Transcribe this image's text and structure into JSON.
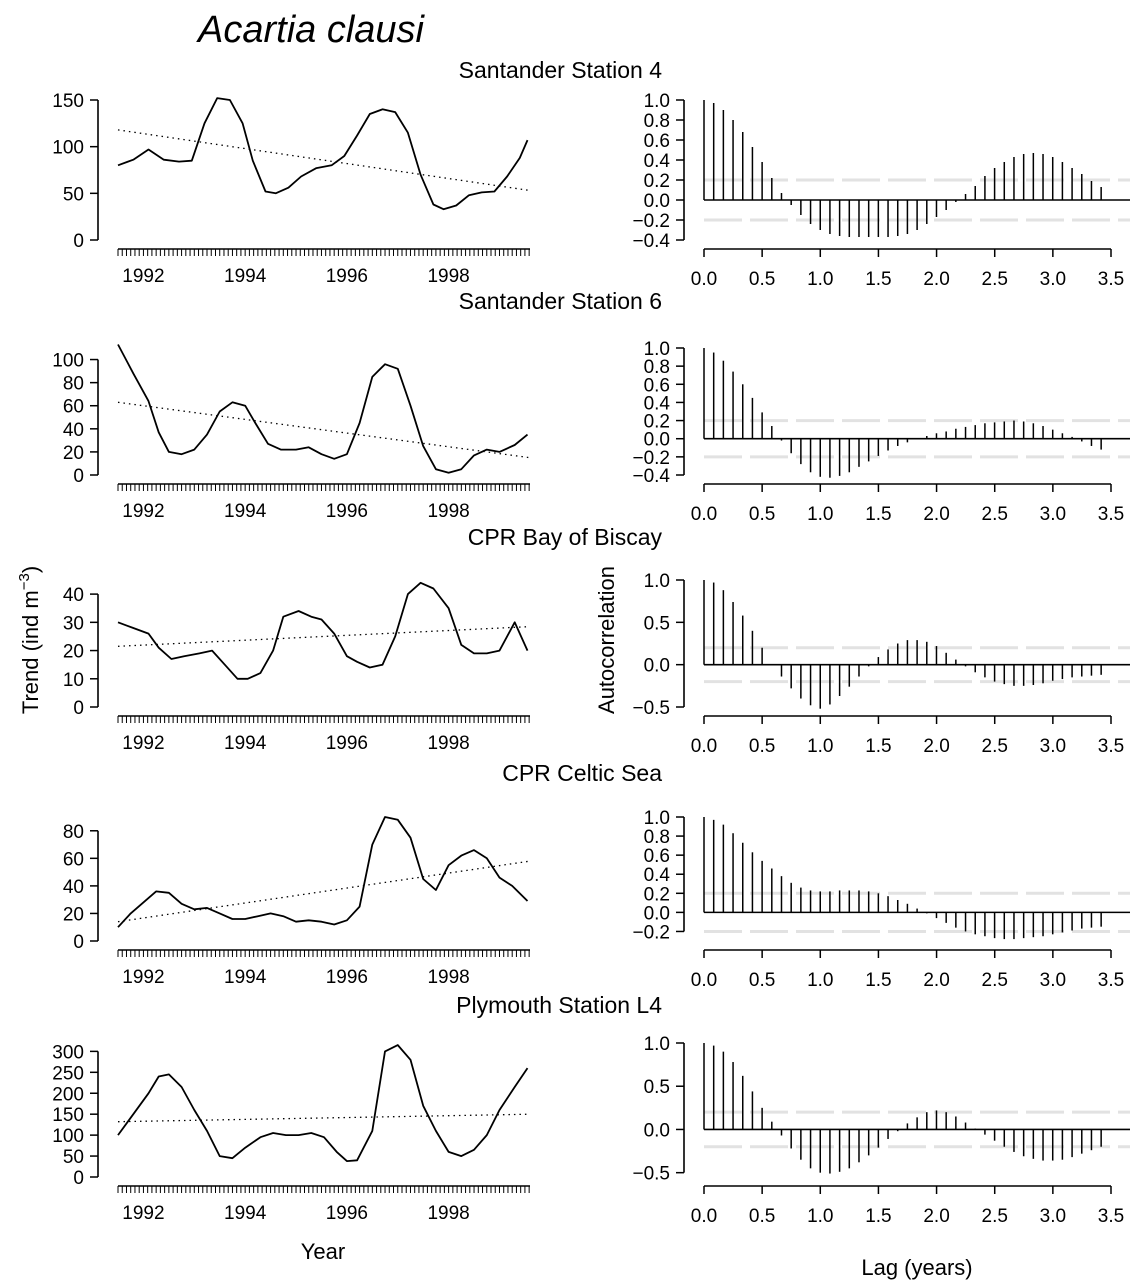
{
  "figure": {
    "title": "Acartia clausi",
    "ylabel_left": "Trend (ind m",
    "ylabel_left_sup": "−3",
    "ylabel_left_close": ")",
    "ylabel_right": "Autocorrelation",
    "xlabel_left": "Year",
    "xlabel_right": "Lag (years)"
  },
  "chart_data": [
    {
      "type": "line",
      "title": "Santander Station 4",
      "xlim": [
        1991.5,
        1999.6
      ],
      "ylim": [
        0,
        150
      ],
      "yticks": [
        0,
        50,
        100,
        150
      ],
      "xticks": [
        1992,
        1994,
        1996,
        1998
      ],
      "series": [
        {
          "style": "solid",
          "x": [
            1991.5,
            1991.8,
            1992.1,
            1992.4,
            1992.7,
            1992.95,
            1993.2,
            1993.45,
            1993.7,
            1993.95,
            1994.15,
            1994.4,
            1994.6,
            1994.85,
            1995.1,
            1995.4,
            1995.7,
            1995.95,
            1996.2,
            1996.45,
            1996.7,
            1996.95,
            1997.2,
            1997.45,
            1997.7,
            1997.9,
            1998.15,
            1998.4,
            1998.65,
            1998.9,
            1999.15,
            1999.4,
            1999.55
          ],
          "y": [
            80,
            86,
            97,
            86,
            84,
            85,
            125,
            152,
            150,
            125,
            85,
            52,
            50,
            56,
            68,
            77,
            80,
            90,
            112,
            135,
            140,
            137,
            115,
            70,
            38,
            33,
            37,
            48,
            51,
            52,
            68,
            88,
            107
          ]
        },
        {
          "style": "dotted",
          "x": [
            1991.5,
            1999.6
          ],
          "y": [
            118,
            53
          ]
        }
      ]
    },
    {
      "type": "line",
      "title": "Santander Station 6",
      "xlim": [
        1991.5,
        1999.6
      ],
      "ylim": [
        0,
        110
      ],
      "yticks": [
        0,
        20,
        40,
        60,
        80,
        100
      ],
      "xticks": [
        1992,
        1994,
        1996,
        1998
      ],
      "series": [
        {
          "style": "solid",
          "x": [
            1991.5,
            1991.8,
            1992.1,
            1992.3,
            1992.5,
            1992.75,
            1993.0,
            1993.25,
            1993.5,
            1993.75,
            1994.0,
            1994.2,
            1994.45,
            1994.7,
            1995.0,
            1995.25,
            1995.5,
            1995.75,
            1996.0,
            1996.25,
            1996.5,
            1996.75,
            1997.0,
            1997.25,
            1997.5,
            1997.75,
            1998.0,
            1998.25,
            1998.5,
            1998.75,
            1999.0,
            1999.3,
            1999.55
          ],
          "y": [
            113,
            88,
            64,
            37,
            20,
            18,
            22,
            35,
            55,
            63,
            60,
            45,
            27,
            22,
            22,
            24,
            18,
            14,
            18,
            45,
            85,
            96,
            92,
            60,
            25,
            5,
            2,
            5,
            17,
            22,
            20,
            26,
            35
          ]
        },
        {
          "style": "dotted",
          "x": [
            1991.5,
            1999.6
          ],
          "y": [
            63,
            15
          ]
        }
      ]
    },
    {
      "type": "line",
      "title": "CPR Bay of Biscay",
      "xlim": [
        1991.5,
        1999.6
      ],
      "ylim": [
        0,
        45
      ],
      "yticks": [
        0,
        10,
        20,
        30,
        40
      ],
      "xticks": [
        1992,
        1994,
        1996,
        1998
      ],
      "series": [
        {
          "style": "solid",
          "x": [
            1991.5,
            1991.8,
            1992.1,
            1992.3,
            1992.55,
            1992.8,
            1993.1,
            1993.35,
            1993.6,
            1993.85,
            1994.05,
            1994.3,
            1994.55,
            1994.75,
            1995.05,
            1995.3,
            1995.5,
            1995.75,
            1996.0,
            1996.2,
            1996.45,
            1996.7,
            1996.95,
            1997.2,
            1997.45,
            1997.7,
            1998.0,
            1998.25,
            1998.5,
            1998.75,
            1999.0,
            1999.3,
            1999.55
          ],
          "y": [
            30,
            28,
            26,
            21,
            17,
            18,
            19,
            20,
            15,
            10,
            10,
            12,
            20,
            32,
            34,
            32,
            31,
            26,
            18,
            16,
            14,
            15,
            25,
            40,
            44,
            42,
            35,
            22,
            19,
            19,
            20,
            30,
            20
          ]
        },
        {
          "style": "dotted",
          "x": [
            1991.5,
            1999.6
          ],
          "y": [
            21.5,
            28.5
          ]
        }
      ]
    },
    {
      "type": "line",
      "title": "CPR Celtic Sea",
      "xlim": [
        1991.5,
        1999.6
      ],
      "ylim": [
        0,
        90
      ],
      "yticks": [
        0,
        20,
        40,
        60,
        80
      ],
      "xticks": [
        1992,
        1994,
        1996,
        1998
      ],
      "series": [
        {
          "style": "solid",
          "x": [
            1991.5,
            1991.75,
            1992.0,
            1992.25,
            1992.5,
            1992.75,
            1993.0,
            1993.25,
            1993.5,
            1993.75,
            1994.0,
            1994.25,
            1994.5,
            1994.75,
            1995.0,
            1995.25,
            1995.5,
            1995.75,
            1996.0,
            1996.25,
            1996.5,
            1996.75,
            1997.0,
            1997.25,
            1997.5,
            1997.75,
            1998.0,
            1998.25,
            1998.5,
            1998.75,
            1999.0,
            1999.25,
            1999.55
          ],
          "y": [
            10,
            20,
            28,
            36,
            35,
            27,
            23,
            24,
            20,
            16,
            16,
            18,
            20,
            18,
            14,
            15,
            14,
            12,
            15,
            25,
            70,
            90,
            88,
            75,
            45,
            37,
            55,
            62,
            66,
            60,
            46,
            40,
            29
          ]
        },
        {
          "style": "dotted",
          "x": [
            1991.5,
            1999.6
          ],
          "y": [
            14,
            58
          ]
        }
      ]
    },
    {
      "type": "line",
      "title": "Plymouth Station L4",
      "xlim": [
        1991.5,
        1999.6
      ],
      "ylim": [
        0,
        320
      ],
      "yticks": [
        0,
        50,
        100,
        150,
        200,
        250,
        300
      ],
      "xticks": [
        1992,
        1994,
        1996,
        1998
      ],
      "series": [
        {
          "style": "solid",
          "x": [
            1991.5,
            1991.8,
            1992.1,
            1992.3,
            1992.5,
            1992.75,
            1993.0,
            1993.25,
            1993.5,
            1993.75,
            1994.0,
            1994.3,
            1994.55,
            1994.8,
            1995.05,
            1995.3,
            1995.55,
            1995.8,
            1996.0,
            1996.2,
            1996.5,
            1996.75,
            1997.0,
            1997.25,
            1997.5,
            1997.75,
            1998.0,
            1998.25,
            1998.5,
            1998.75,
            1999.0,
            1999.3,
            1999.55
          ],
          "y": [
            100,
            150,
            200,
            240,
            245,
            215,
            160,
            110,
            50,
            45,
            70,
            95,
            105,
            100,
            100,
            105,
            95,
            60,
            38,
            40,
            110,
            300,
            315,
            280,
            170,
            110,
            60,
            50,
            65,
            100,
            160,
            215,
            260
          ]
        },
        {
          "style": "dotted",
          "x": [
            1991.5,
            1999.6
          ],
          "y": [
            132,
            150
          ]
        }
      ]
    },
    {
      "type": "bar",
      "title": "",
      "xlim": [
        -0.1,
        3.6
      ],
      "ylim": [
        -0.4,
        1.0
      ],
      "yticks": [
        -0.4,
        -0.2,
        0.0,
        0.2,
        0.4,
        0.6,
        0.8,
        1.0
      ],
      "ytick_labels": [
        "−0.4",
        "−0.2",
        "0.0",
        "0.2",
        "0.4",
        "0.6",
        "0.8",
        "1.0"
      ],
      "xticks": [
        0.0,
        0.5,
        1.0,
        1.5,
        2.0,
        2.5,
        3.0,
        3.5
      ],
      "xtick_labels": [
        "0.0",
        "0.5",
        "1.0",
        "1.5",
        "2.0",
        "2.5",
        "3.0",
        "3.5"
      ],
      "ci": 0.2,
      "lag_step": 0.0833,
      "values": [
        1.0,
        0.97,
        0.9,
        0.8,
        0.68,
        0.53,
        0.38,
        0.22,
        0.07,
        -0.05,
        -0.15,
        -0.24,
        -0.3,
        -0.34,
        -0.36,
        -0.37,
        -0.37,
        -0.37,
        -0.37,
        -0.37,
        -0.36,
        -0.34,
        -0.3,
        -0.24,
        -0.17,
        -0.1,
        -0.02,
        0.06,
        0.14,
        0.24,
        0.32,
        0.38,
        0.43,
        0.46,
        0.47,
        0.46,
        0.43,
        0.38,
        0.32,
        0.26,
        0.19,
        0.13
      ]
    },
    {
      "type": "bar",
      "title": "",
      "xlim": [
        -0.1,
        3.6
      ],
      "ylim": [
        -0.4,
        1.0
      ],
      "yticks": [
        -0.4,
        -0.2,
        0.0,
        0.2,
        0.4,
        0.6,
        0.8,
        1.0
      ],
      "ytick_labels": [
        "−0.4",
        "−0.2",
        "0.0",
        "0.2",
        "0.4",
        "0.6",
        "0.8",
        "1.0"
      ],
      "xticks": [
        0.0,
        0.5,
        1.0,
        1.5,
        2.0,
        2.5,
        3.0,
        3.5
      ],
      "xtick_labels": [
        "0.0",
        "0.5",
        "1.0",
        "1.5",
        "2.0",
        "2.5",
        "3.0",
        "3.5"
      ],
      "ci": 0.2,
      "lag_step": 0.0833,
      "values": [
        1.0,
        0.95,
        0.86,
        0.74,
        0.6,
        0.45,
        0.29,
        0.14,
        -0.02,
        -0.16,
        -0.28,
        -0.37,
        -0.42,
        -0.43,
        -0.41,
        -0.37,
        -0.31,
        -0.25,
        -0.19,
        -0.13,
        -0.08,
        -0.04,
        0.0,
        0.03,
        0.06,
        0.08,
        0.11,
        0.13,
        0.15,
        0.17,
        0.18,
        0.19,
        0.2,
        0.19,
        0.17,
        0.14,
        0.1,
        0.06,
        0.02,
        -0.03,
        -0.08,
        -0.12
      ]
    },
    {
      "type": "bar",
      "title": "",
      "xlim": [
        -0.1,
        3.6
      ],
      "ylim": [
        -0.5,
        1.0
      ],
      "yticks": [
        -0.5,
        0.0,
        0.5,
        1.0
      ],
      "ytick_labels": [
        "−0.5",
        "0.0",
        "0.5",
        "1.0"
      ],
      "xticks": [
        0.0,
        0.5,
        1.0,
        1.5,
        2.0,
        2.5,
        3.0,
        3.5
      ],
      "xtick_labels": [
        "0.0",
        "0.5",
        "1.0",
        "1.5",
        "2.0",
        "2.5",
        "3.0",
        "3.5"
      ],
      "ci": 0.2,
      "lag_step": 0.0833,
      "values": [
        1.0,
        0.97,
        0.88,
        0.74,
        0.58,
        0.4,
        0.2,
        0.0,
        -0.14,
        -0.28,
        -0.4,
        -0.48,
        -0.52,
        -0.47,
        -0.37,
        -0.26,
        -0.14,
        -0.02,
        0.09,
        0.18,
        0.25,
        0.29,
        0.29,
        0.27,
        0.22,
        0.14,
        0.06,
        -0.02,
        -0.09,
        -0.15,
        -0.2,
        -0.23,
        -0.25,
        -0.25,
        -0.24,
        -0.22,
        -0.19,
        -0.17,
        -0.15,
        -0.14,
        -0.13,
        -0.12
      ]
    },
    {
      "type": "bar",
      "title": "",
      "xlim": [
        -0.1,
        3.6
      ],
      "ylim": [
        -0.3,
        1.0
      ],
      "yticks": [
        -0.2,
        0.0,
        0.2,
        0.4,
        0.6,
        0.8,
        1.0
      ],
      "ytick_labels": [
        "−0.2",
        "0.0",
        "0.2",
        "0.4",
        "0.6",
        "0.8",
        "1.0"
      ],
      "xticks": [
        0.0,
        0.5,
        1.0,
        1.5,
        2.0,
        2.5,
        3.0,
        3.5
      ],
      "xtick_labels": [
        "0.0",
        "0.5",
        "1.0",
        "1.5",
        "2.0",
        "2.5",
        "3.0",
        "3.5"
      ],
      "ci": 0.2,
      "lag_step": 0.0833,
      "values": [
        1.0,
        0.97,
        0.92,
        0.83,
        0.73,
        0.63,
        0.54,
        0.46,
        0.38,
        0.31,
        0.26,
        0.23,
        0.22,
        0.22,
        0.23,
        0.23,
        0.23,
        0.22,
        0.2,
        0.17,
        0.13,
        0.09,
        0.04,
        -0.01,
        -0.06,
        -0.11,
        -0.16,
        -0.2,
        -0.23,
        -0.25,
        -0.27,
        -0.28,
        -0.28,
        -0.27,
        -0.26,
        -0.25,
        -0.23,
        -0.21,
        -0.19,
        -0.17,
        -0.16,
        -0.15
      ]
    },
    {
      "type": "bar",
      "title": "",
      "xlim": [
        -0.1,
        3.6
      ],
      "ylim": [
        -0.55,
        1.0
      ],
      "yticks": [
        -0.5,
        0.0,
        0.5,
        1.0
      ],
      "ytick_labels": [
        "−0.5",
        "0.0",
        "0.5",
        "1.0"
      ],
      "xticks": [
        0.0,
        0.5,
        1.0,
        1.5,
        2.0,
        2.5,
        3.0,
        3.5
      ],
      "xtick_labels": [
        "0.0",
        "0.5",
        "1.0",
        "1.5",
        "2.0",
        "2.5",
        "3.0",
        "3.5"
      ],
      "ci": 0.2,
      "lag_step": 0.0833,
      "values": [
        1.0,
        0.97,
        0.9,
        0.78,
        0.62,
        0.44,
        0.25,
        0.09,
        -0.07,
        -0.22,
        -0.35,
        -0.45,
        -0.5,
        -0.51,
        -0.49,
        -0.45,
        -0.38,
        -0.3,
        -0.21,
        -0.11,
        -0.02,
        0.07,
        0.14,
        0.2,
        0.22,
        0.2,
        0.15,
        0.08,
        0.01,
        -0.06,
        -0.13,
        -0.2,
        -0.26,
        -0.31,
        -0.34,
        -0.36,
        -0.36,
        -0.35,
        -0.32,
        -0.28,
        -0.24,
        -0.2
      ]
    }
  ]
}
